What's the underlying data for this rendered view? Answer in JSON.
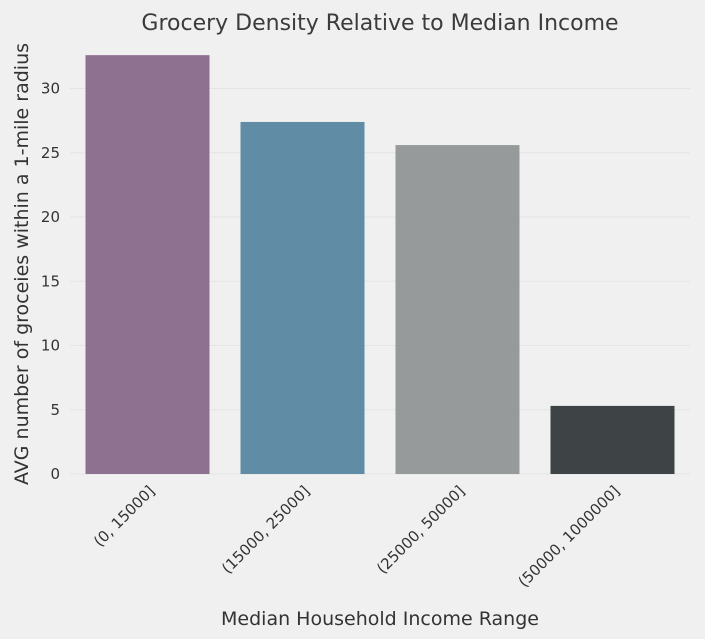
{
  "chart_data": {
    "type": "bar",
    "title": "Grocery Density Relative to Median Income",
    "xlabel": "Median Household Income Range",
    "ylabel": "AVG number of groceies within a 1-mile radius",
    "categories": [
      "(0, 15000]",
      "(15000, 25000]",
      "(25000, 50000]",
      "(50000, 1000000]"
    ],
    "values": [
      32.6,
      27.4,
      25.6,
      5.3
    ],
    "colors": [
      "#8e7191",
      "#608ca5",
      "#979a9b",
      "#3e4446"
    ],
    "ylim": [
      0,
      33
    ],
    "yticks": [
      0,
      5,
      10,
      15,
      20,
      25,
      30
    ],
    "grid": true,
    "background": "#f0f0f0"
  }
}
